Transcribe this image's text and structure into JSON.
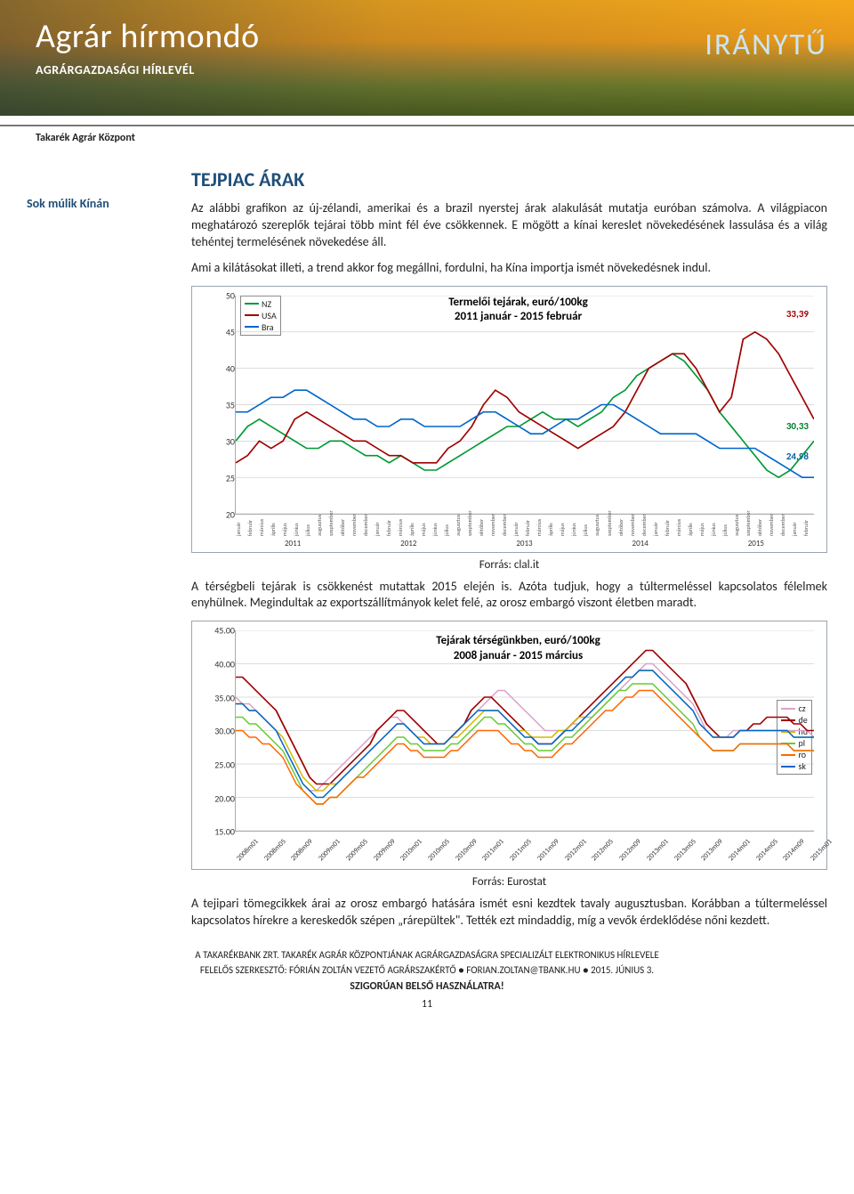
{
  "header": {
    "title": "Agrár hírmondó",
    "subtitle": "AGRÁRGAZDASÁGI HÍRLEVÉL",
    "brand": "IRÁNYTŰ",
    "org": "Takarék Agrár Központ"
  },
  "sidebar": {
    "text": "Sok múlik Kínán"
  },
  "section": {
    "title": "TEJPIAC ÁRAK",
    "p1": "Az alábbi grafikon az új-zélandi, amerikai és a brazil nyerstej árak alakulását mutatja euróban számolva. A világpiacon meghatározó szereplők tejárai több mint fél éve csökkennek. E mögött a kínai kereslet növekedésének lassulása és a világ tehéntej termelésének növekedése áll.",
    "p2": "Ami a kilátásokat illeti, a trend akkor fog megállni, fordulni, ha Kína importja ismét növekedésnek indul.",
    "chart1_caption": "Forrás: clal.it",
    "p3": "A térségbeli tejárak is csökkenést mutattak 2015 elején is. Azóta tudjuk, hogy a túltermeléssel kapcsolatos félelmek enyhülnek. Megindultak az exportszállítmányok kelet felé, az orosz embargó viszont életben maradt.",
    "chart2_caption": "Forrás: Eurostat",
    "p4": "A tejipari tömegcikkek árai az orosz embargó hatására ismét esni kezdtek tavaly augusztusban. Korábban a túltermeléssel kapcsolatos hírekre a kereskedők szépen „rárepültek\". Tették ezt mindaddig, míg a vevők érdeklődése nőni kezdett."
  },
  "chart1": {
    "type": "line",
    "title_l1": "Termelői tejárak, euró/100kg",
    "title_l2": "2011 január - 2015 február",
    "ylim": [
      20,
      50
    ],
    "yticks": [
      20,
      25,
      30,
      35,
      40,
      45,
      50
    ],
    "x_years": [
      "2011",
      "2012",
      "2013",
      "2014",
      "2015"
    ],
    "months": [
      "január",
      "február",
      "március",
      "április",
      "május",
      "június",
      "július",
      "augusztus",
      "szeptember",
      "október",
      "november",
      "december",
      "január",
      "február",
      "március",
      "április",
      "május",
      "június",
      "július",
      "augusztus",
      "szeptember",
      "október",
      "november",
      "december",
      "január",
      "február",
      "március",
      "április",
      "május",
      "június",
      "július",
      "augusztus",
      "szeptember",
      "október",
      "november",
      "december",
      "január",
      "február",
      "március",
      "április",
      "május",
      "június",
      "július",
      "augusztus",
      "szeptember",
      "október",
      "november",
      "december",
      "január",
      "február"
    ],
    "legend": [
      {
        "label": "NZ",
        "color": "#009933"
      },
      {
        "label": "USA",
        "color": "#a00000"
      },
      {
        "label": "Bra",
        "color": "#0066cc"
      }
    ],
    "end_labels": {
      "usa": "33,39",
      "nz": "30,33",
      "bra": "24,98"
    },
    "series": {
      "nz": {
        "color": "#009933",
        "width": 1.6,
        "data": [
          30,
          32,
          33,
          32,
          31,
          30,
          29,
          29,
          30,
          30,
          29,
          28,
          28,
          27,
          28,
          27,
          26,
          26,
          27,
          28,
          29,
          30,
          31,
          32,
          32,
          33,
          34,
          33,
          33,
          32,
          33,
          34,
          36,
          37,
          39,
          40,
          41,
          42,
          41,
          39,
          37,
          34,
          32,
          30,
          28,
          26,
          25,
          26,
          28,
          30
        ]
      },
      "usa": {
        "color": "#a00000",
        "width": 1.6,
        "data": [
          27,
          28,
          30,
          29,
          30,
          33,
          34,
          33,
          32,
          31,
          30,
          30,
          29,
          28,
          28,
          27,
          27,
          27,
          29,
          30,
          32,
          35,
          37,
          36,
          34,
          33,
          32,
          31,
          30,
          29,
          30,
          31,
          32,
          34,
          37,
          40,
          41,
          42,
          42,
          40,
          37,
          34,
          36,
          44,
          45,
          44,
          42,
          39,
          36,
          33
        ]
      },
      "bra": {
        "color": "#0066cc",
        "width": 1.6,
        "data": [
          34,
          34,
          35,
          36,
          36,
          37,
          37,
          36,
          35,
          34,
          33,
          33,
          32,
          32,
          33,
          33,
          32,
          32,
          32,
          32,
          33,
          34,
          34,
          33,
          32,
          31,
          31,
          32,
          33,
          33,
          34,
          35,
          35,
          34,
          33,
          32,
          31,
          31,
          31,
          31,
          30,
          29,
          29,
          29,
          29,
          28,
          27,
          26,
          25,
          25
        ]
      }
    }
  },
  "chart2": {
    "type": "line",
    "title_l1": "Tejárak térségünkben, euró/100kg",
    "title_l2": "2008 január - 2015 március",
    "ylim": [
      15,
      45
    ],
    "yticks": [
      15,
      20,
      25,
      30,
      35,
      40,
      45
    ],
    "x_ticks": [
      "2008m01",
      "2008m05",
      "2008m09",
      "2009m01",
      "2009m05",
      "2009m09",
      "2010m01",
      "2010m05",
      "2010m09",
      "2011m01",
      "2011m05",
      "2011m09",
      "2012m01",
      "2012m05",
      "2012m09",
      "2013m01",
      "2013m05",
      "2013m09",
      "2014m01",
      "2014m05",
      "2014m09",
      "2015m01"
    ],
    "legend": [
      {
        "label": "cz",
        "color": "#d9a3c9"
      },
      {
        "label": "de",
        "color": "#a00000"
      },
      {
        "label": "hu",
        "color": "#d4b800"
      },
      {
        "label": "pl",
        "color": "#66cc33"
      },
      {
        "label": "ro",
        "color": "#ff6600"
      },
      {
        "label": "sk",
        "color": "#0066cc"
      }
    ],
    "series": {
      "cz": {
        "color": "#d9a3c9",
        "width": 1.4,
        "data": [
          35,
          34,
          34,
          33,
          32,
          31,
          30,
          28,
          26,
          24,
          22,
          21,
          21,
          22,
          23,
          24,
          25,
          26,
          27,
          28,
          29,
          30,
          31,
          32,
          32,
          31,
          30,
          29,
          28,
          28,
          28,
          28,
          29,
          30,
          31,
          32,
          33,
          34,
          35,
          36,
          36,
          35,
          34,
          33,
          32,
          31,
          30,
          30,
          30,
          30,
          31,
          31,
          32,
          32,
          33,
          34,
          35,
          36,
          37,
          38,
          39,
          40,
          40,
          39,
          38,
          37,
          36,
          35,
          34,
          32,
          30,
          29,
          29,
          29,
          30,
          30,
          30,
          30,
          30,
          30,
          30,
          30,
          30,
          30,
          30,
          30,
          29
        ]
      },
      "de": {
        "color": "#a00000",
        "width": 1.6,
        "data": [
          38,
          38,
          37,
          36,
          35,
          34,
          33,
          31,
          29,
          27,
          25,
          23,
          22,
          22,
          22,
          23,
          24,
          25,
          26,
          27,
          28,
          30,
          31,
          32,
          33,
          33,
          32,
          31,
          30,
          29,
          28,
          28,
          29,
          30,
          31,
          33,
          34,
          35,
          35,
          34,
          33,
          32,
          31,
          30,
          29,
          28,
          28,
          28,
          29,
          30,
          31,
          32,
          33,
          34,
          35,
          36,
          37,
          38,
          39,
          40,
          41,
          42,
          42,
          41,
          40,
          39,
          38,
          37,
          35,
          33,
          31,
          30,
          29,
          29,
          29,
          30,
          30,
          31,
          31,
          32,
          32,
          32,
          32,
          31,
          31,
          30,
          30
        ]
      },
      "hu": {
        "color": "#d4b800",
        "width": 1.4,
        "data": [
          34,
          34,
          33,
          33,
          32,
          31,
          30,
          29,
          27,
          25,
          23,
          22,
          21,
          21,
          22,
          22,
          23,
          24,
          25,
          26,
          27,
          28,
          29,
          30,
          31,
          31,
          30,
          29,
          29,
          28,
          28,
          28,
          29,
          29,
          30,
          31,
          32,
          33,
          33,
          33,
          32,
          31,
          30,
          30,
          29,
          29,
          29,
          29,
          30,
          30,
          31,
          32,
          32,
          33,
          34,
          35,
          36,
          37,
          38,
          38,
          39,
          39,
          39,
          38,
          37,
          36,
          35,
          34,
          33,
          31,
          30,
          29,
          29,
          29,
          29,
          30,
          30,
          30,
          30,
          30,
          30,
          30,
          30,
          29,
          29,
          29,
          29
        ]
      },
      "pl": {
        "color": "#66cc33",
        "width": 1.4,
        "data": [
          32,
          32,
          31,
          31,
          30,
          29,
          28,
          27,
          25,
          23,
          21,
          20,
          19,
          19,
          20,
          20,
          21,
          22,
          23,
          24,
          25,
          26,
          27,
          28,
          29,
          29,
          28,
          28,
          27,
          27,
          27,
          27,
          28,
          28,
          29,
          30,
          31,
          32,
          32,
          31,
          31,
          30,
          29,
          28,
          28,
          27,
          27,
          27,
          28,
          29,
          29,
          30,
          31,
          32,
          33,
          34,
          35,
          36,
          36,
          37,
          37,
          37,
          37,
          36,
          35,
          34,
          33,
          32,
          31,
          29,
          28,
          27,
          27,
          27,
          27,
          28,
          28,
          28,
          28,
          28,
          28,
          28,
          28,
          27,
          27,
          27,
          27
        ]
      },
      "ro": {
        "color": "#ff6600",
        "width": 1.4,
        "data": [
          30,
          30,
          29,
          29,
          28,
          28,
          27,
          26,
          24,
          22,
          21,
          20,
          19,
          19,
          20,
          20,
          21,
          22,
          23,
          23,
          24,
          25,
          26,
          27,
          28,
          28,
          27,
          27,
          26,
          26,
          26,
          26,
          27,
          27,
          28,
          29,
          30,
          30,
          30,
          30,
          29,
          28,
          28,
          27,
          27,
          26,
          26,
          26,
          27,
          28,
          28,
          29,
          30,
          31,
          32,
          33,
          33,
          34,
          35,
          35,
          36,
          36,
          36,
          35,
          34,
          33,
          32,
          31,
          30,
          29,
          28,
          27,
          27,
          27,
          27,
          28,
          28,
          28,
          28,
          28,
          28,
          28,
          28,
          27,
          27,
          27,
          27
        ]
      },
      "sk": {
        "color": "#0066cc",
        "width": 1.4,
        "data": [
          34,
          34,
          33,
          33,
          32,
          31,
          30,
          28,
          26,
          24,
          22,
          21,
          20,
          20,
          21,
          22,
          23,
          24,
          25,
          26,
          27,
          28,
          29,
          30,
          31,
          31,
          30,
          29,
          28,
          28,
          28,
          28,
          29,
          30,
          31,
          32,
          33,
          33,
          33,
          33,
          32,
          31,
          30,
          29,
          29,
          28,
          28,
          28,
          29,
          30,
          30,
          31,
          32,
          33,
          34,
          35,
          36,
          37,
          38,
          38,
          39,
          39,
          39,
          38,
          37,
          36,
          35,
          34,
          33,
          31,
          30,
          29,
          29,
          29,
          29,
          30,
          30,
          30,
          30,
          30,
          30,
          30,
          30,
          29,
          29,
          29,
          29
        ]
      }
    }
  },
  "footer": {
    "l1": "A TAKARÉKBANK ZRT. TAKARÉK AGRÁR KÖZPONTJÁNAK AGRÁRGAZDASÁGRA SPECIALIZÁLT ELEKTRONIKUS HÍRLEVELE",
    "l2": "FELELŐS SZERKESZTŐ: FÓRIÁN ZOLTÁN VEZETŐ AGRÁRSZAKÉRTŐ ● FORIAN.ZOLTAN@TBANK.HU ● 2015. JÚNIUS 3.",
    "l3": "SZIGORÚAN BELSŐ HASZNÁLATRA!",
    "page": "11"
  }
}
